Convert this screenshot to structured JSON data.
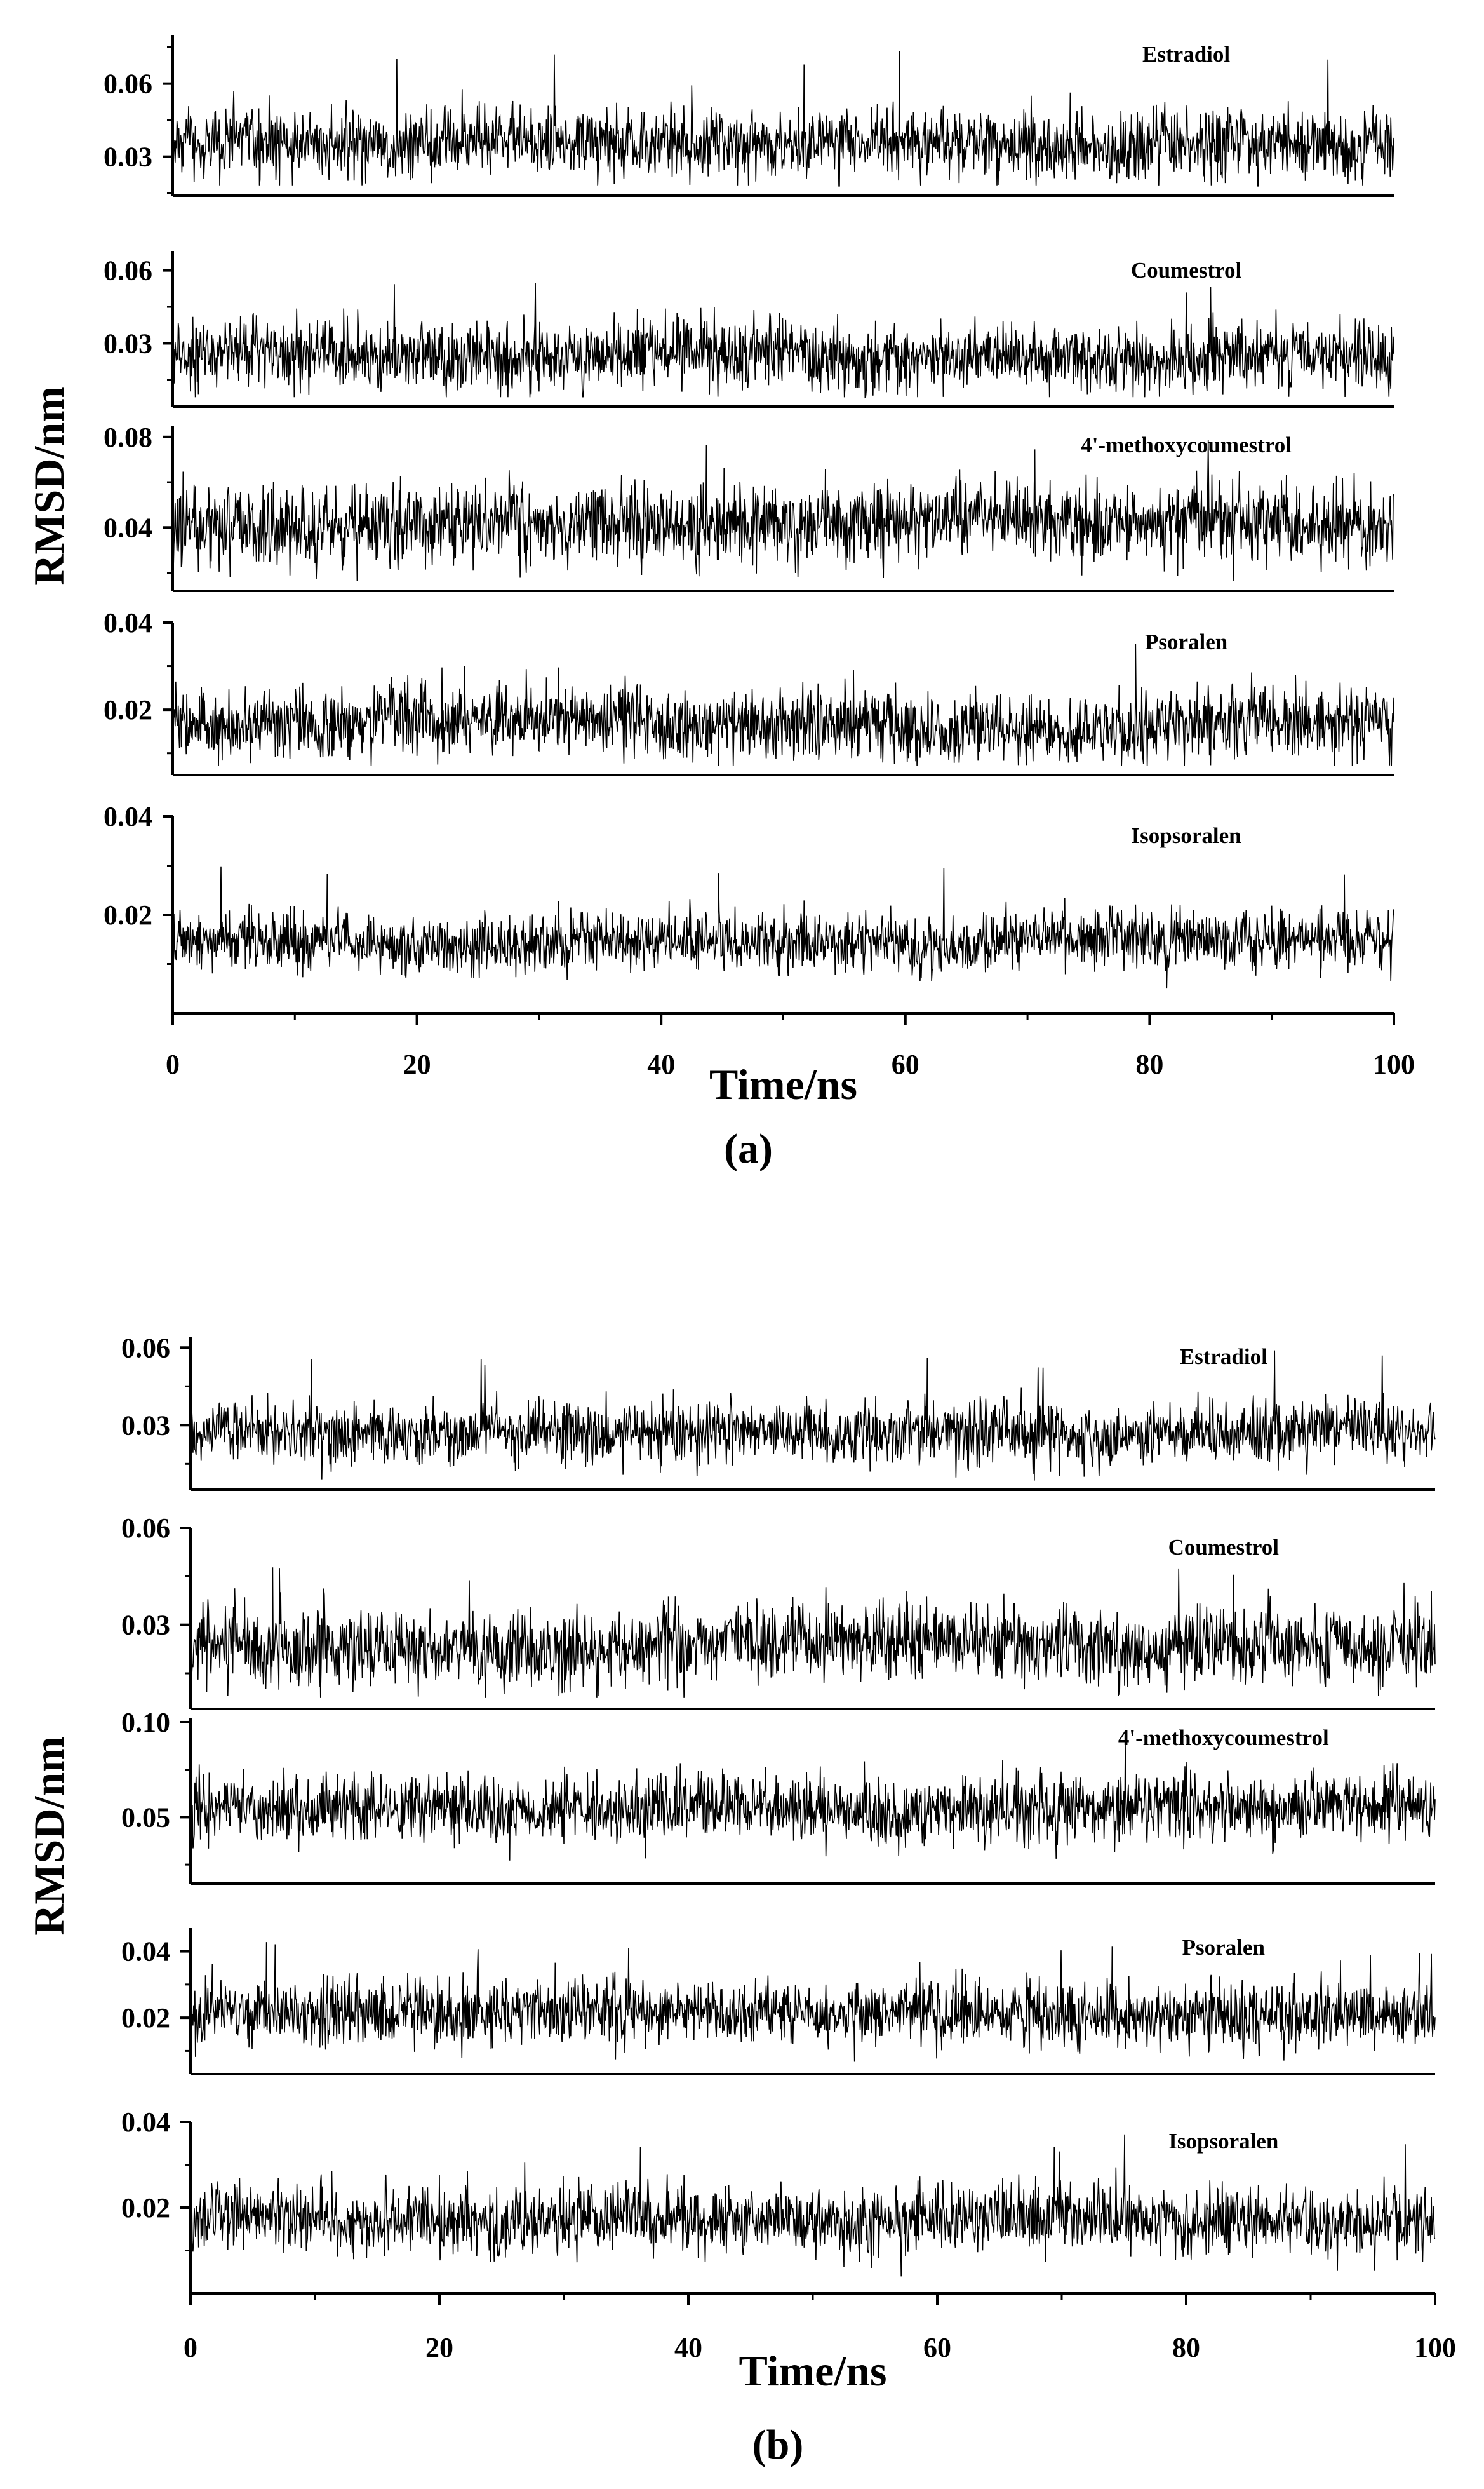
{
  "figure": {
    "panel_labels": [
      "(a)",
      "(b)"
    ],
    "ylabel": "RMSD/nm",
    "xlabel": "Time/ns"
  },
  "chart_data": [
    {
      "id": "a",
      "type": "line",
      "panel_label": "(a)",
      "xlabel": "Time/ns",
      "ylabel": "RMSD/nm",
      "xlim": [
        0,
        100
      ],
      "x_ticks": [
        0,
        20,
        40,
        60,
        80,
        100
      ],
      "x": {
        "start": 0,
        "end": 100,
        "step": 0.05
      },
      "grid": false,
      "subplots": [
        {
          "name": "Estradiol",
          "ylim": [
            0.014,
            0.08
          ],
          "y_ticks": [
            0.03,
            0.06
          ],
          "y_tick_labels": [
            "0.03",
            "0.06"
          ],
          "mean": 0.035,
          "spread": 0.007,
          "peak": 0.078
        },
        {
          "name": "Coumestrol",
          "ylim": [
            0.004,
            0.068
          ],
          "y_ticks": [
            0.03,
            0.06
          ],
          "y_tick_labels": [
            "0.03",
            "0.06"
          ],
          "mean": 0.025,
          "spread": 0.007,
          "peak": 0.057
        },
        {
          "name": "4'-methoxycoumestrol",
          "ylim": [
            0.012,
            0.085
          ],
          "y_ticks": [
            0.04,
            0.08
          ],
          "y_tick_labels": [
            "0.04",
            "0.08"
          ],
          "mean": 0.042,
          "spread": 0.009,
          "peak": 0.081
        },
        {
          "name": "Psoralen",
          "ylim": [
            0.005,
            0.04
          ],
          "y_ticks": [
            0.02,
            0.04
          ],
          "y_tick_labels": [
            "0.02",
            "0.04"
          ],
          "mean": 0.017,
          "spread": 0.004,
          "peak": 0.039
        },
        {
          "name": "Isopsoralen",
          "ylim": [
            0.0,
            0.04
          ],
          "y_ticks": [
            0.02,
            0.04
          ],
          "y_tick_labels": [
            "0.02",
            "0.04"
          ],
          "mean": 0.015,
          "spread": 0.003,
          "peak": 0.031
        }
      ]
    },
    {
      "id": "b",
      "type": "line",
      "panel_label": "(b)",
      "xlabel": "Time/ns",
      "ylabel": "RMSD/nm",
      "xlim": [
        0,
        100
      ],
      "x_ticks": [
        0,
        20,
        40,
        60,
        80,
        100
      ],
      "x": {
        "start": 0,
        "end": 100,
        "step": 0.05
      },
      "grid": false,
      "subplots": [
        {
          "name": "Estradiol",
          "ylim": [
            0.005,
            0.064
          ],
          "y_ticks": [
            0.03,
            0.06
          ],
          "y_tick_labels": [
            "0.03",
            "0.06"
          ],
          "mean": 0.028,
          "spread": 0.006,
          "peak": 0.06
        },
        {
          "name": "Coumestrol",
          "ylim": [
            0.004,
            0.06
          ],
          "y_ticks": [
            0.03,
            0.06
          ],
          "y_tick_labels": [
            "0.03",
            "0.06"
          ],
          "mean": 0.024,
          "spread": 0.006,
          "peak": 0.048
        },
        {
          "name": "4'-methoxycoumestrol",
          "ylim": [
            0.015,
            0.102
          ],
          "y_ticks": [
            0.05,
            0.1
          ],
          "y_tick_labels": [
            "0.05",
            "0.10"
          ],
          "mean": 0.055,
          "spread": 0.009,
          "peak": 0.095
        },
        {
          "name": "Psoralen",
          "ylim": [
            0.003,
            0.047
          ],
          "y_ticks": [
            0.02,
            0.04
          ],
          "y_tick_labels": [
            "0.02",
            "0.04"
          ],
          "mean": 0.021,
          "spread": 0.005,
          "peak": 0.044
        },
        {
          "name": "Isopsoralen",
          "ylim": [
            0.0,
            0.04
          ],
          "y_ticks": [
            0.02,
            0.04
          ],
          "y_tick_labels": [
            "0.02",
            "0.04"
          ],
          "mean": 0.017,
          "spread": 0.004,
          "peak": 0.038
        }
      ]
    }
  ]
}
